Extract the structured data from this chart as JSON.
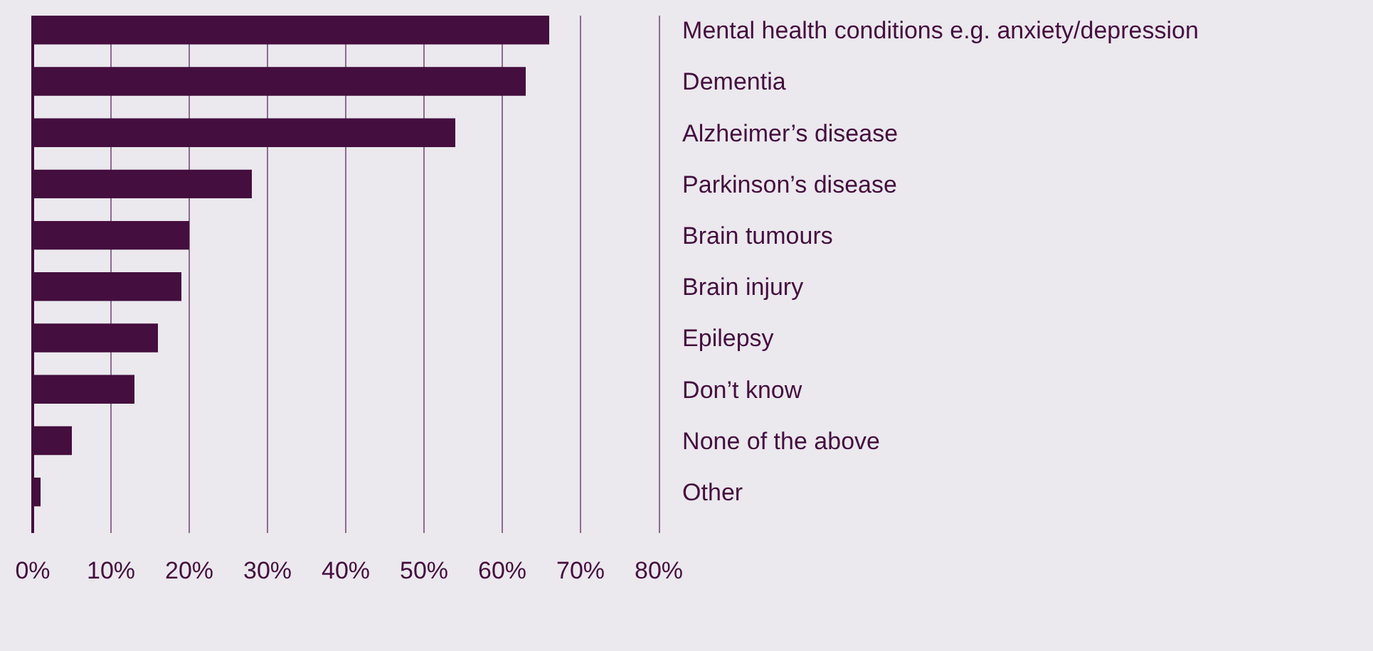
{
  "chart_data": {
    "type": "bar",
    "orientation": "horizontal",
    "categories": [
      "Mental health conditions e.g. anxiety/depression",
      "Dementia",
      "Alzheimer’s disease",
      "Parkinson’s disease",
      "Brain tumours",
      "Brain injury",
      "Epilepsy",
      "Don’t know",
      "None of the above",
      "Other"
    ],
    "values": [
      66,
      63,
      54,
      28,
      20,
      19,
      16,
      13,
      5,
      1
    ],
    "color": "#440e3e",
    "xlim": [
      0,
      80
    ],
    "xticks": [
      {
        "value": 0,
        "label": "0%"
      },
      {
        "value": 10,
        "label": "10%"
      },
      {
        "value": 20,
        "label": "20%"
      },
      {
        "value": 30,
        "label": "30%"
      },
      {
        "value": 40,
        "label": "40%"
      },
      {
        "value": 50,
        "label": "50%"
      },
      {
        "value": 60,
        "label": "60%"
      },
      {
        "value": 70,
        "label": "70%"
      },
      {
        "value": 80,
        "label": "80%"
      }
    ],
    "grid": "x"
  }
}
